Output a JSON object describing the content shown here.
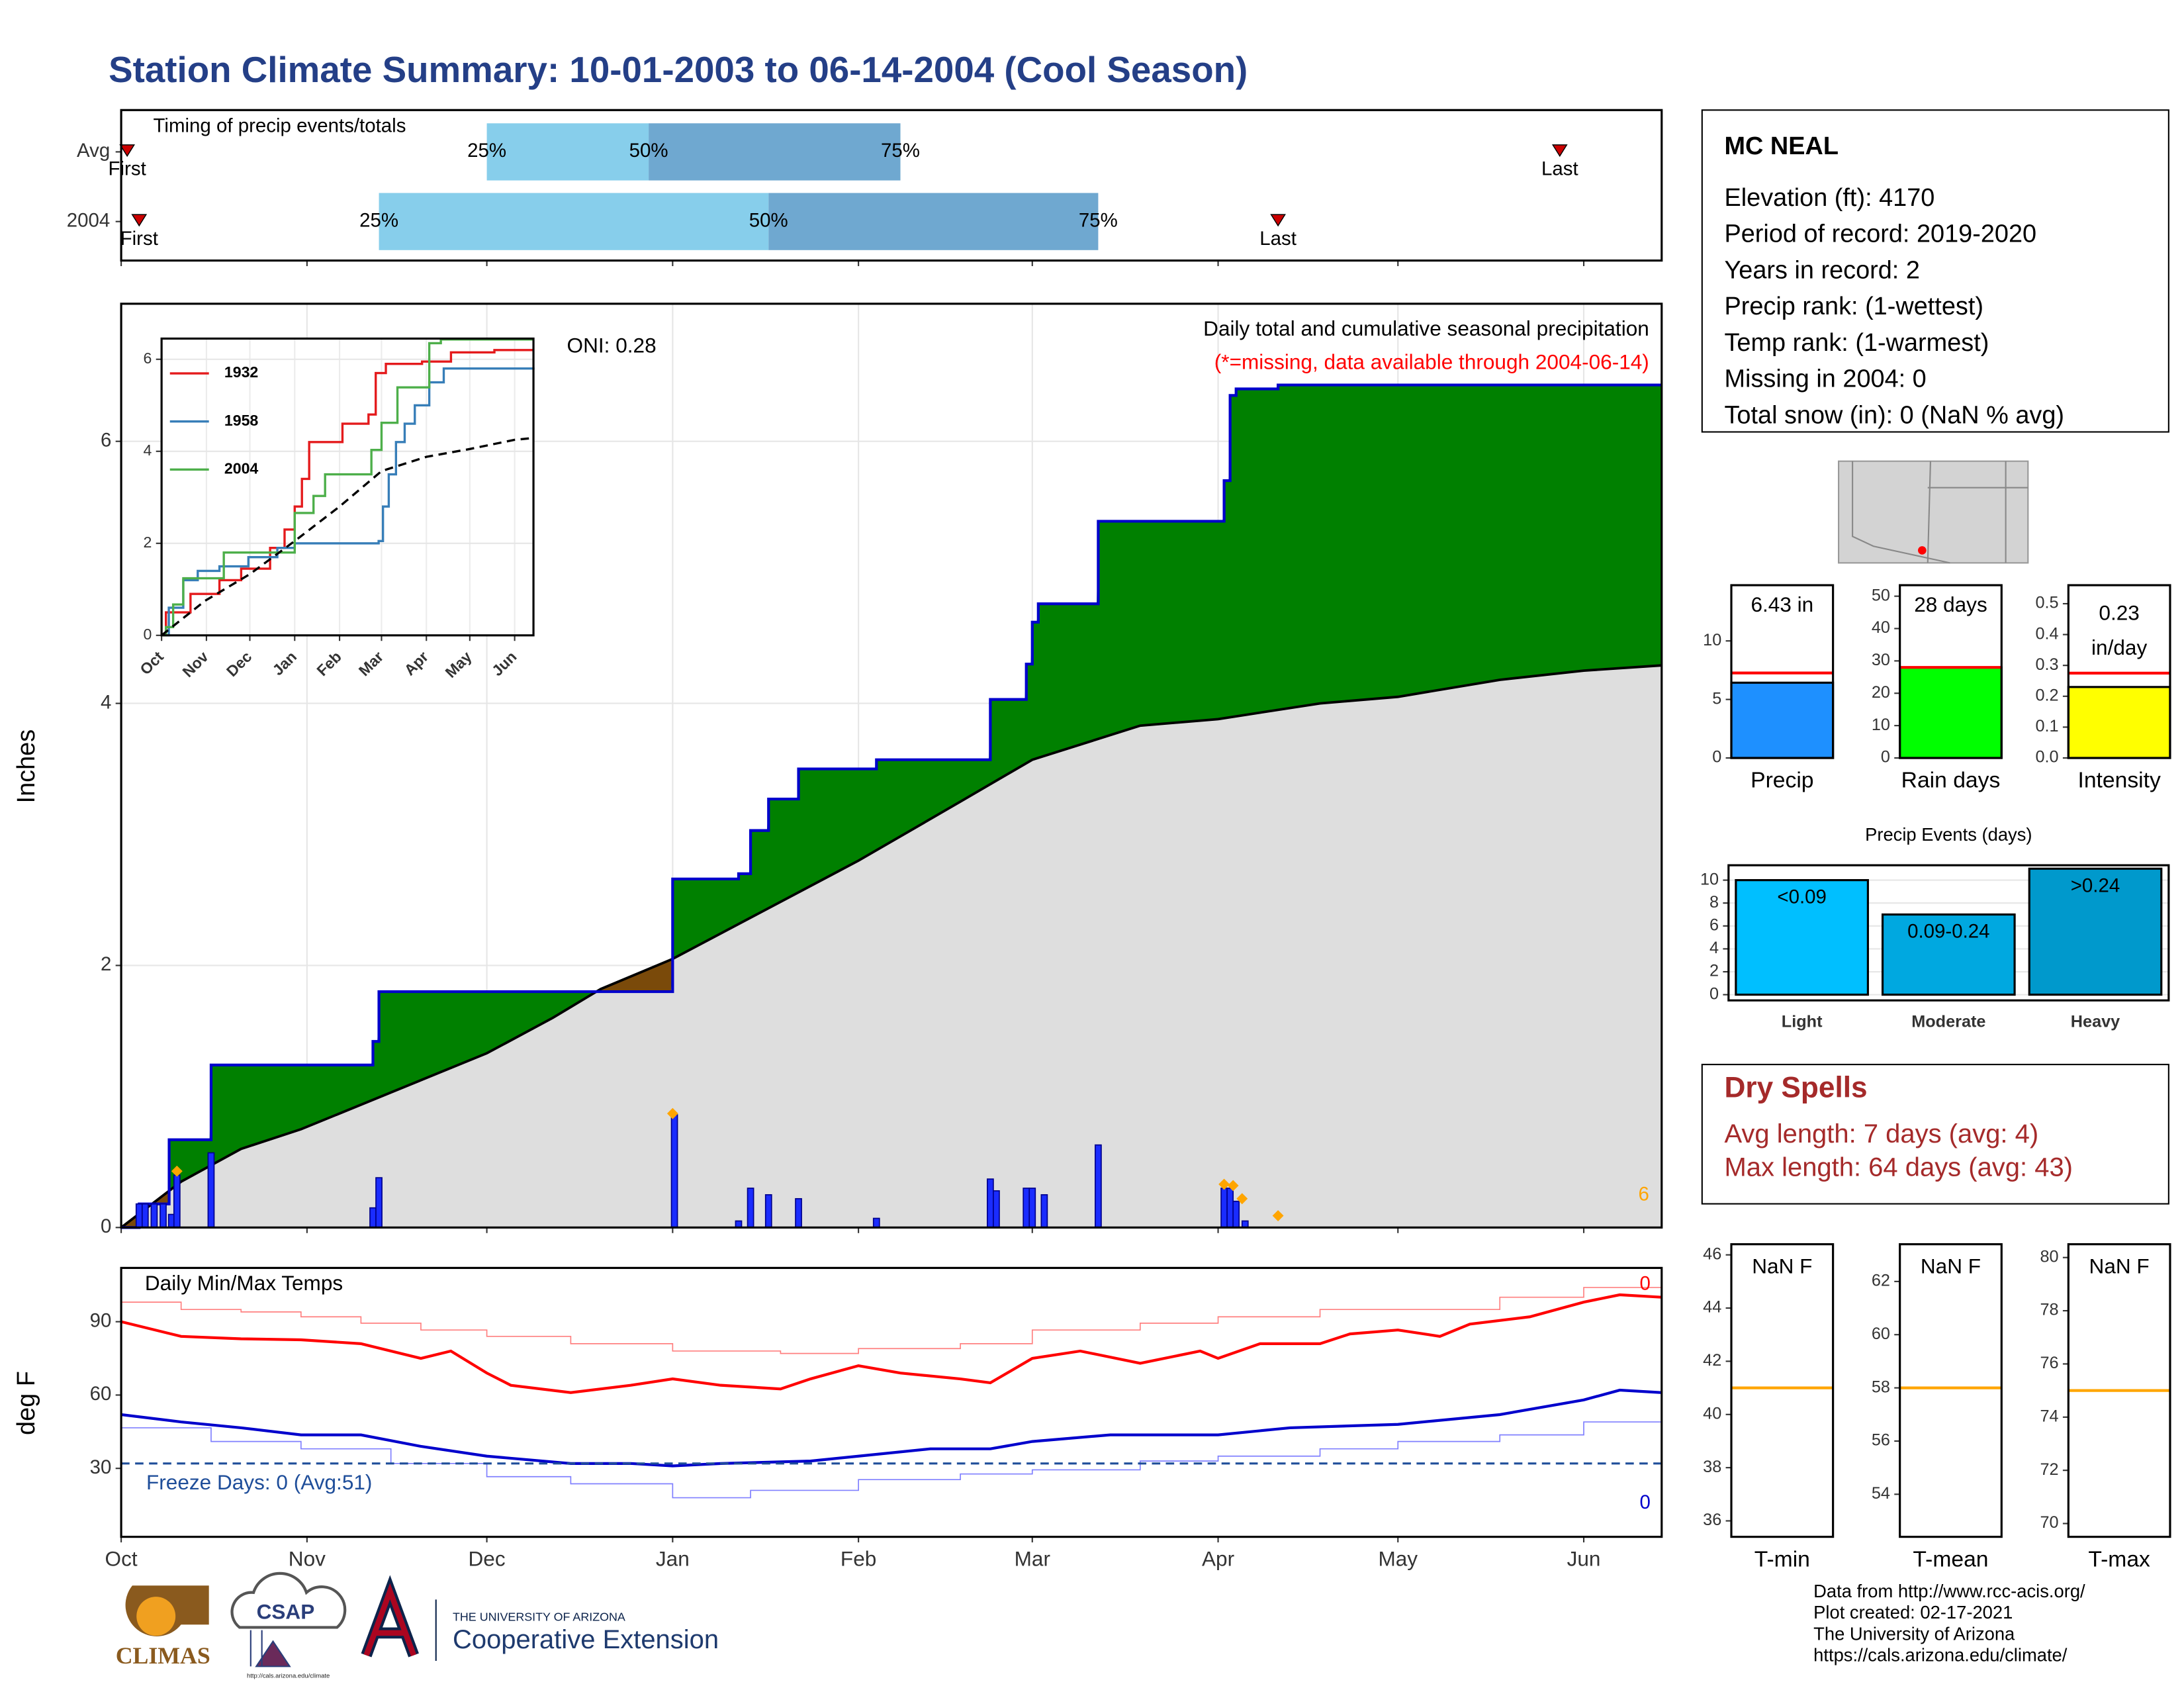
{
  "title": "Station Climate Summary: 10-01-2003 to 06-14-2004 (Cool Season)",
  "chart_data": [
    {
      "type": "timing",
      "title": "Timing of precip events/totals",
      "xlim": [
        0,
        257
      ],
      "xticks": [
        0,
        31,
        61,
        92,
        123,
        152,
        183,
        213,
        244
      ],
      "rows": [
        {
          "name": "Avg",
          "first": 1,
          "p25": 61,
          "p50": 88,
          "p75": 130,
          "last": 240
        },
        {
          "name": "2004",
          "first": 3,
          "p25": 43,
          "p50": 108,
          "p75": 163,
          "last": 193
        }
      ],
      "marker_labels": {
        "first": "First",
        "p25": "25%",
        "p50": "50%",
        "p75": "75%",
        "last": "Last"
      },
      "colors": {
        "lower": "#87ceeb",
        "upper": "#6fa8d0",
        "marker": "#cc0000"
      }
    },
    {
      "type": "cumulative_precip",
      "title": "Daily total and cumulative seasonal precipitation",
      "subtitle": "(*=missing, data available through 2004-06-14)",
      "annotation": "ONI: 0.28",
      "corner_label": "6",
      "ylabel": "Inches",
      "xlim": [
        0,
        257
      ],
      "ylim": [
        0,
        7.05
      ],
      "yticks": [
        0,
        2,
        4,
        6
      ],
      "xticks": [
        0,
        31,
        61,
        92,
        123,
        152,
        183,
        213,
        244
      ],
      "grid": true,
      "cumulative": {
        "x": [
          0,
          3,
          8,
          15,
          42,
          43,
          92,
          103,
          105,
          108,
          113,
          126,
          145,
          151,
          152,
          153,
          163,
          184,
          185,
          186,
          193,
          257
        ],
        "values": [
          0,
          0.18,
          0.67,
          1.24,
          1.42,
          1.8,
          2.66,
          2.7,
          3.03,
          3.27,
          3.5,
          3.57,
          4.03,
          4.3,
          4.62,
          4.76,
          5.39,
          5.7,
          6.35,
          6.4,
          6.43,
          6.43
        ],
        "color": "#0000cc"
      },
      "average": {
        "x": [
          0,
          10,
          20,
          30,
          61,
          72,
          80,
          92,
          123,
          140,
          152,
          170,
          183,
          200,
          213,
          230,
          244,
          257
        ],
        "values": [
          0,
          0.35,
          0.6,
          0.75,
          1.33,
          1.6,
          1.82,
          2.05,
          2.8,
          3.25,
          3.57,
          3.83,
          3.88,
          4.0,
          4.05,
          4.18,
          4.25,
          4.29
        ],
        "color": "#000000"
      },
      "daily": {
        "x": [
          3,
          4,
          5.5,
          7,
          8.4,
          9.3,
          15,
          42,
          43,
          92.3,
          103,
          105,
          108,
          113,
          126,
          145,
          146,
          151,
          152,
          154,
          163,
          184,
          185,
          186,
          187.5
        ],
        "values": [
          0.18,
          0.18,
          0.18,
          0.18,
          0.1,
          0.4,
          0.57,
          0.15,
          0.38,
          0.86,
          0.05,
          0.3,
          0.25,
          0.22,
          0.07,
          0.37,
          0.28,
          0.3,
          0.3,
          0.25,
          0.63,
          0.3,
          0.3,
          0.2,
          0.05
        ],
        "color": "#1a2cff"
      },
      "snow": {
        "x": [
          9.3,
          92,
          184,
          185.5,
          187,
          193
        ],
        "values": [
          0.43,
          0.87,
          0.33,
          0.32,
          0.22,
          0.09
        ],
        "color": "#ffa500"
      },
      "fill_colors": {
        "above": "#008000",
        "below": "#7a4a0a",
        "base": "#dedede"
      }
    },
    {
      "type": "line",
      "xlim": [
        0,
        257
      ],
      "ylim": [
        0,
        6.45
      ],
      "yticks": [
        0,
        2,
        4,
        6
      ],
      "xticks": [
        {
          "value": 0,
          "label": "Oct"
        },
        {
          "value": 31,
          "label": "Nov"
        },
        {
          "value": 61,
          "label": "Dec"
        },
        {
          "value": 92,
          "label": "Jan"
        },
        {
          "value": 123,
          "label": "Feb"
        },
        {
          "value": 152,
          "label": "Mar"
        },
        {
          "value": 183,
          "label": "Apr"
        },
        {
          "value": 213,
          "label": "May"
        },
        {
          "value": 244,
          "label": "Jun"
        }
      ],
      "series": [
        {
          "name": "1932",
          "color": "#e41a1c",
          "x": [
            0,
            3,
            20,
            40,
            55,
            75,
            85,
            92,
            97,
            102,
            120,
            125,
            143,
            148,
            155,
            180,
            200,
            230,
            257
          ],
          "values": [
            0,
            0.5,
            0.9,
            1.2,
            1.45,
            1.9,
            2.3,
            2.8,
            3.4,
            4.2,
            4.2,
            4.6,
            4.8,
            5.7,
            5.9,
            5.95,
            6.15,
            6.2,
            6.2
          ]
        },
        {
          "name": "1958",
          "color": "#377eb8",
          "x": [
            0,
            5,
            15,
            25,
            40,
            60,
            80,
            92,
            150,
            153,
            157,
            162,
            168,
            175,
            185,
            195,
            257
          ],
          "values": [
            0,
            0.6,
            1.2,
            1.4,
            1.5,
            1.7,
            1.9,
            2.0,
            2.05,
            2.8,
            3.5,
            4.2,
            4.6,
            5.0,
            5.5,
            5.8,
            5.82
          ]
        },
        {
          "name": "2004",
          "color": "#4daf4a",
          "x": [
            0,
            3,
            8,
            15,
            43,
            92,
            105,
            113,
            145,
            152,
            163,
            185,
            193,
            257
          ],
          "values": [
            0,
            0.18,
            0.67,
            1.24,
            1.8,
            2.66,
            3.03,
            3.5,
            4.03,
            4.62,
            5.39,
            6.35,
            6.43,
            6.43
          ]
        }
      ],
      "average": {
        "x": [
          0,
          30,
          61,
          92,
          123,
          152,
          183,
          213,
          244,
          257
        ],
        "values": [
          0,
          0.75,
          1.33,
          2.05,
          2.8,
          3.57,
          3.88,
          4.05,
          4.25,
          4.29
        ],
        "color": "#000000"
      }
    },
    {
      "type": "temps",
      "title": "Daily Min/Max Temps",
      "ylabel": "deg F",
      "annotation": "Freeze Days: 0 (Avg:51)",
      "max_count": "0",
      "min_count": "0",
      "xlim": [
        0,
        257
      ],
      "ylim": [
        2,
        112
      ],
      "yticks": [
        30,
        60,
        90
      ],
      "freeze": 32,
      "freeze_color": "#1f4e9a",
      "xticks": [
        {
          "value": 0,
          "label": "Oct"
        },
        {
          "value": 31,
          "label": "Nov"
        },
        {
          "value": 61,
          "label": "Dec"
        },
        {
          "value": 92,
          "label": "Jan"
        },
        {
          "value": 123,
          "label": "Feb"
        },
        {
          "value": 152,
          "label": "Mar"
        },
        {
          "value": 183,
          "label": "Apr"
        },
        {
          "value": 213,
          "label": "May"
        },
        {
          "value": 244,
          "label": "Jun"
        }
      ],
      "series": [
        {
          "color": "#ff8080",
          "width": 0.8,
          "x": [
            0,
            10,
            20,
            30,
            40,
            50,
            61,
            75,
            92,
            110,
            123,
            140,
            152,
            170,
            183,
            200,
            213,
            230,
            244,
            257
          ],
          "values": [
            98,
            95,
            94,
            92,
            89.4,
            86.6,
            84,
            81,
            78,
            77,
            79,
            81,
            86.6,
            89.4,
            92,
            95,
            95,
            100,
            104,
            106.6
          ]
        },
        {
          "color": "#8080ff",
          "width": 0.8,
          "x": [
            0,
            15,
            30,
            45,
            61,
            75,
            92,
            105,
            123,
            140,
            152,
            170,
            183,
            200,
            213,
            230,
            244,
            257
          ],
          "values": [
            46.6,
            41,
            38,
            32,
            26.6,
            23.7,
            18,
            21,
            25.4,
            27.7,
            29.4,
            33,
            35,
            38,
            41,
            43.7,
            49,
            55
          ]
        },
        {
          "color": "#ff0000",
          "width": 2,
          "x": [
            0,
            10,
            20,
            30,
            40,
            50,
            55,
            61,
            65,
            75,
            85,
            92,
            100,
            110,
            115,
            123,
            130,
            140,
            145,
            152,
            160,
            170,
            180,
            183,
            190,
            200,
            205,
            213,
            220,
            225,
            235,
            244,
            250,
            257
          ],
          "values": [
            90,
            84,
            83,
            82.6,
            81,
            75,
            78,
            69,
            64,
            61,
            64,
            66.6,
            64,
            62.5,
            66.6,
            72,
            69,
            66.6,
            65,
            75,
            78,
            73,
            78,
            75,
            81,
            81,
            85,
            86.6,
            84,
            89,
            92,
            98,
            101,
            100
          ]
        },
        {
          "color": "#0000cc",
          "width": 2,
          "x": [
            0,
            10,
            20,
            30,
            40,
            50,
            61,
            75,
            85,
            92,
            100,
            115,
            123,
            135,
            145,
            152,
            165,
            183,
            195,
            213,
            230,
            244,
            250,
            257
          ],
          "values": [
            52,
            49,
            46.6,
            43.7,
            43.7,
            39,
            35,
            32,
            32,
            31,
            32,
            33,
            35,
            38,
            38,
            41,
            43.7,
            43.7,
            46.6,
            48,
            52,
            58,
            62,
            61
          ]
        }
      ]
    },
    {
      "type": "gauge",
      "panels": [
        {
          "category": "Precip",
          "value": 6.43,
          "value_label": "6.43 in",
          "reference": 7.26,
          "color": "#1e90ff",
          "ylim": [
            0,
            14.76
          ],
          "yticks": [
            0,
            5,
            10
          ]
        },
        {
          "category": "Rain days",
          "value": 28,
          "value_label": "28 days",
          "reference": 28,
          "color": "#00ff00",
          "ylim": [
            0,
            53.4
          ],
          "yticks": [
            0,
            10,
            20,
            30,
            40,
            50
          ]
        },
        {
          "category": "Intensity",
          "value": 0.23,
          "value_label": [
            "0.23",
            "in/day"
          ],
          "reference": 0.275,
          "color": "#ffff00",
          "ylim": [
            0,
            0.56
          ],
          "yticks": [
            {
              "value": 0,
              "label": "0.0"
            },
            0.1,
            0.2,
            0.3,
            0.4,
            0.5
          ]
        }
      ],
      "reference_color": "#ff0000"
    },
    {
      "type": "bar",
      "title": "Precip Events (days)",
      "categories": [
        "Light",
        "Moderate",
        "Heavy"
      ],
      "values": [
        10,
        7,
        11
      ],
      "value_labels": [
        "<0.09",
        "0.09-0.24",
        ">0.24"
      ],
      "colors": [
        "#00bfff",
        "#00a8e0",
        "#0099cc"
      ],
      "ylim": [
        -0.5,
        11.3
      ],
      "yticks": [
        0,
        2,
        4,
        6,
        8,
        10
      ],
      "grid": true
    },
    {
      "type": "temp_gauge",
      "reference_color": "#ffa500",
      "panels": [
        {
          "category": "T-min",
          "value_label": "NaN F",
          "reference": 41,
          "ylim": [
            35.4,
            46.4
          ],
          "yticks": [
            36,
            38,
            40,
            42,
            44,
            46
          ]
        },
        {
          "category": "T-mean",
          "value_label": "NaN F",
          "reference": 58,
          "ylim": [
            52.4,
            63.4
          ],
          "yticks": [
            54,
            56,
            58,
            60,
            62
          ]
        },
        {
          "category": "T-max",
          "value_label": "NaN F",
          "reference": 75,
          "ylim": [
            69.5,
            80.5
          ],
          "yticks": [
            70,
            72,
            74,
            76,
            78,
            80
          ]
        }
      ]
    }
  ],
  "station": {
    "name": "MC NEAL",
    "lines": [
      "Elevation (ft): 4170",
      "Period of record: 2019-2020",
      "Years in record: 2",
      "Precip rank:  (1-wettest)",
      "Temp rank:  (1-warmest)",
      "Missing in 2004: 0",
      "Total snow (in): 0 (NaN % avg)"
    ]
  },
  "dry_spells": {
    "title": "Dry Spells",
    "lines": [
      "Avg length: 7 days (avg: 4)",
      "Max length: 64 days (avg: 43)"
    ]
  },
  "credits": [
    "Data from http://www.rcc-acis.org/",
    "Plot created: 02-17-2021",
    "The University of Arizona",
    "https://cals.arizona.edu/climate/"
  ],
  "logos": {
    "climas": "CLIMAS",
    "csap": "CSAP",
    "csap_url": "http://cals.arizona.edu/climate",
    "university": "THE UNIVERSITY OF ARIZONA",
    "extension": "Cooperative Extension"
  }
}
